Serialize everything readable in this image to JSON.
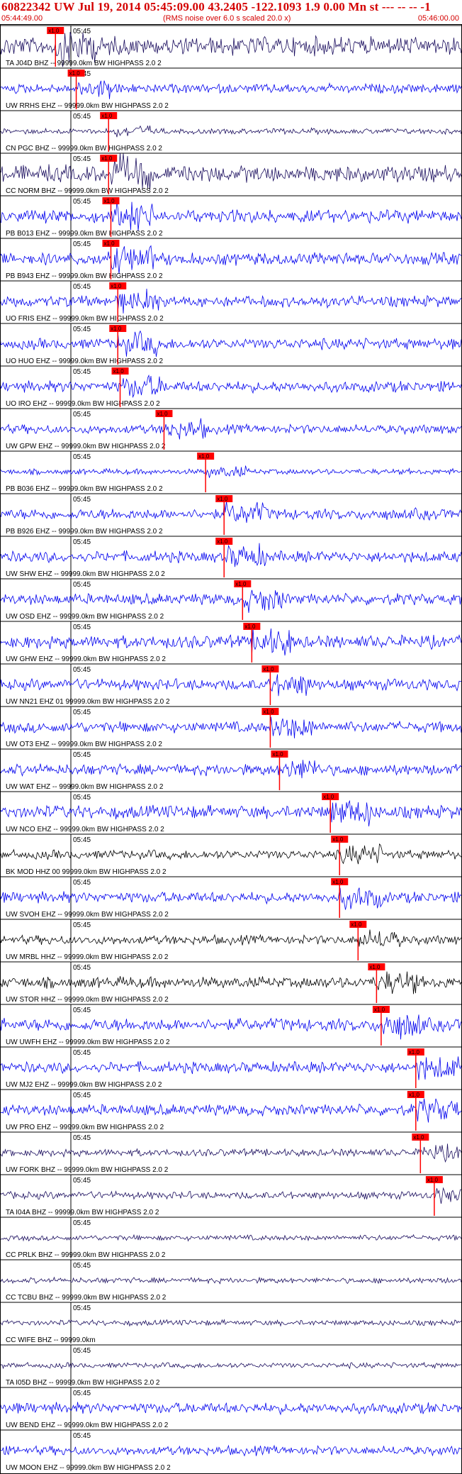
{
  "header": {
    "title": "60822342 UW Jul 19, 2014 05:45:09.00   43.2405 -122.1093  1.9 0.00 Mn st --- -- --  -1",
    "start_time": "05:44:49.00",
    "scale_note": "(RMS noise over 6.0 s scaled 20.0 x)",
    "end_time": "05:46:00.00"
  },
  "colors": {
    "header_text": "#d40000",
    "trace_blue": "#0000ee",
    "trace_navy": "#1a0d5e",
    "trace_black": "#000000",
    "pick_marker": "#ff0000",
    "grid": "#000000"
  },
  "chart_data": {
    "type": "seismogram",
    "time_tick_label": "05:45",
    "pick_label": "x1.0",
    "stations": [
      {
        "label": "TA J04D BHZ -- 99999.0km BW  HIGHPASS  2.0  2",
        "color": "navy",
        "amp": 0.5,
        "pick": 0.12
      },
      {
        "label": "UW RRHS EHZ -- 99999.0km BW  HIGHPASS  2.0  2",
        "color": "blue",
        "amp": 0.25,
        "pick": 0.165
      },
      {
        "label": "CN PGC BHZ -- 99999.0km BW  HIGHPASS  2.0  2",
        "color": "navy",
        "amp": 0.15,
        "pick": 0.235
      },
      {
        "label": "CC NORM BHZ -- 99999.0km BW  HIGHPASS  2.0  2",
        "color": "navy",
        "amp": 0.45,
        "pick": 0.235
      },
      {
        "label": "PB B013 EHZ -- 99999.0km BW  HIGHPASS  2.0  2",
        "color": "blue",
        "amp": 0.35,
        "pick": 0.24
      },
      {
        "label": "PB B943 EHZ -- 99999.0km BW  HIGHPASS  2.0  2",
        "color": "blue",
        "amp": 0.35,
        "pick": 0.24
      },
      {
        "label": "UO FRIS EHZ -- 99999.0km BW  HIGHPASS  2.0  2",
        "color": "blue",
        "amp": 0.3,
        "pick": 0.255
      },
      {
        "label": "UO HUO EHZ -- 99999.0km BW  HIGHPASS  2.0  2",
        "color": "blue",
        "amp": 0.3,
        "pick": 0.255
      },
      {
        "label": "UO IRO EHZ -- 99999.0km BW  HIGHPASS  2.0  2",
        "color": "blue",
        "amp": 0.3,
        "pick": 0.26
      },
      {
        "label": "UW GPW EHZ -- 99999.0km BW  HIGHPASS  2.0  2",
        "color": "blue",
        "amp": 0.25,
        "pick": 0.355
      },
      {
        "label": "PB B036 EHZ -- 99999.0km BW  HIGHPASS  2.0  2",
        "color": "blue",
        "amp": 0.15,
        "pick": 0.445
      },
      {
        "label": "PB B926 EHZ -- 99999.0km BW  HIGHPASS  2.0  2",
        "color": "blue",
        "amp": 0.3,
        "pick": 0.485
      },
      {
        "label": "UW SHW EHZ -- 99999.0km BW  HIGHPASS  2.0  2",
        "color": "blue",
        "amp": 0.3,
        "pick": 0.485
      },
      {
        "label": "UW OSD EHZ -- 99999.0km BW  HIGHPASS  2.0  2",
        "color": "blue",
        "amp": 0.3,
        "pick": 0.525
      },
      {
        "label": "UW GHW EHZ -- 99999.0km BW  HIGHPASS  2.0  2",
        "color": "blue",
        "amp": 0.35,
        "pick": 0.545
      },
      {
        "label": "UW NN21 EHZ 01 99999.0km BW  HIGHPASS  2.0  2",
        "color": "blue",
        "amp": 0.3,
        "pick": 0.585
      },
      {
        "label": "UW OT3 EHZ -- 99999.0km BW  HIGHPASS  2.0  2",
        "color": "blue",
        "amp": 0.3,
        "pick": 0.585
      },
      {
        "label": "UW WAT EHZ -- 99999.0km BW  HIGHPASS  2.0  2",
        "color": "blue",
        "amp": 0.3,
        "pick": 0.605
      },
      {
        "label": "UW NCO EHZ -- 99999.0km BW  HIGHPASS  2.0  2",
        "color": "blue",
        "amp": 0.35,
        "pick": 0.715
      },
      {
        "label": "BK MOD HHZ 00 99999.0km BW  HIGHPASS  2.0  2",
        "color": "black",
        "amp": 0.25,
        "pick": 0.735
      },
      {
        "label": "UW SVOH EHZ -- 99999.0km BW  HIGHPASS  2.0  2",
        "color": "blue",
        "amp": 0.3,
        "pick": 0.735
      },
      {
        "label": "UW MRBL HHZ -- 99999.0km BW  HIGHPASS  2.0  2",
        "color": "black",
        "amp": 0.25,
        "pick": 0.775
      },
      {
        "label": "UW STOR HHZ -- 99999.0km BW  HIGHPASS  2.0  2",
        "color": "black",
        "amp": 0.3,
        "pick": 0.815
      },
      {
        "label": "UW UWFH EHZ -- 99999.0km BW  HIGHPASS  2.0  2",
        "color": "blue",
        "amp": 0.35,
        "pick": 0.825
      },
      {
        "label": "UW MJ2 EHZ -- 99999.0km BW  HIGHPASS  2.0  2",
        "color": "blue",
        "amp": 0.3,
        "pick": 0.9
      },
      {
        "label": "UW PRO EHZ -- 99999.0km BW  HIGHPASS  2.0  2",
        "color": "blue",
        "amp": 0.3,
        "pick": 0.9
      },
      {
        "label": "UW FORK BHZ -- 99999.0km BW  HIGHPASS  2.0  2",
        "color": "navy",
        "amp": 0.2,
        "pick": 0.91
      },
      {
        "label": "TA I04A BHZ -- 99999.0km BW  HIGHPASS  2.0  2",
        "color": "navy",
        "amp": 0.2,
        "pick": 0.94
      },
      {
        "label": "CC PRLK BHZ -- 99999.0km BW  HIGHPASS  2.0  2",
        "color": "navy",
        "amp": 0.15,
        "pick": null
      },
      {
        "label": "CC TCBU BHZ -- 99999.0km BW  HIGHPASS  2.0  2",
        "color": "navy",
        "amp": 0.15,
        "pick": null
      },
      {
        "label": "CC WIFE BHZ -- 99999.0km",
        "color": "navy",
        "amp": 0.15,
        "pick": null
      },
      {
        "label": "TA I05D BHZ -- 99999.0km BW  HIGHPASS  2.0  2",
        "color": "navy",
        "amp": 0.15,
        "pick": null
      },
      {
        "label": "UW BEND EHZ -- 99999.0km BW  HIGHPASS  2.0  2",
        "color": "blue",
        "amp": 0.3,
        "pick": null
      },
      {
        "label": "UW MOON EHZ -- 99999.0km BW  HIGHPASS  2.0  2",
        "color": "blue",
        "amp": 0.25,
        "pick": null
      }
    ]
  }
}
